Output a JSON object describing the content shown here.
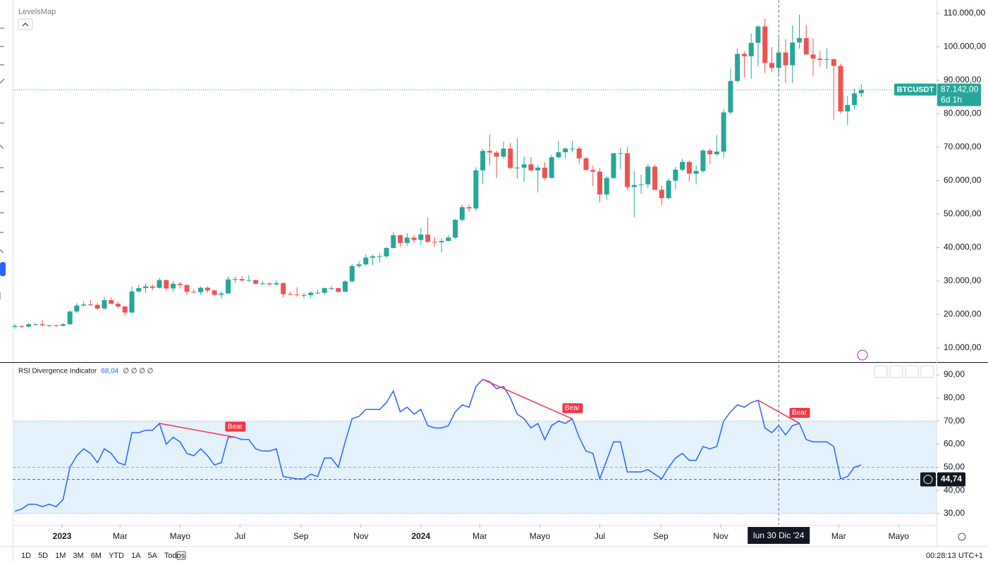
{
  "chart_data": [
    {
      "type": "candlestick",
      "indicator": "LevelsMap",
      "symbol": "BTCUSDT",
      "countdown": "6d 1h",
      "last_price": {
        "value": 87142,
        "label": "87.142,00"
      },
      "up_color": "#26a69a",
      "down_color": "#ef5350",
      "ylim": [
        5790,
        114000
      ],
      "yticks": [
        {
          "value": 10000,
          "label": "10.000,00"
        },
        {
          "value": 20000,
          "label": "20.000,00"
        },
        {
          "value": 30000,
          "label": "30.000,00"
        },
        {
          "value": 40000,
          "label": "40.000,00"
        },
        {
          "value": 50000,
          "label": "50.000,00"
        },
        {
          "value": 60000,
          "label": "60.000,00"
        },
        {
          "value": 70000,
          "label": "70.000,00"
        },
        {
          "value": 80000,
          "label": "80.000,00"
        },
        {
          "value": 90000,
          "label": "90.000,00"
        },
        {
          "value": 100000,
          "label": "100.000,00"
        },
        {
          "value": 110000,
          "label": "110.000,00"
        }
      ],
      "xticks": [
        {
          "value": "2023-01-01",
          "label": "2023"
        },
        {
          "value": "2023-03-01",
          "label": "Mar"
        },
        {
          "value": "2023-05-01",
          "label": "Mayo"
        },
        {
          "value": "2023-07-01",
          "label": "Jul"
        },
        {
          "value": "2023-09-01",
          "label": "Sep"
        },
        {
          "value": "2023-11-01",
          "label": "Nov"
        },
        {
          "value": "2024-01-01",
          "label": "2024"
        },
        {
          "value": "2024-03-01",
          "label": "Mar"
        },
        {
          "value": "2024-05-01",
          "label": "Mayo"
        },
        {
          "value": "2024-07-01",
          "label": "Jul"
        },
        {
          "value": "2024-09-01",
          "label": "Sep"
        },
        {
          "value": "2024-11-01",
          "label": "Nov"
        },
        {
          "value": "2025-03-01",
          "label": "Mar"
        },
        {
          "value": "2025-05-01",
          "label": "Mayo"
        }
      ],
      "x": [
        "2022-11-14",
        "2022-11-21",
        "2022-11-28",
        "2022-12-05",
        "2022-12-12",
        "2022-12-19",
        "2022-12-26",
        "2023-01-02",
        "2023-01-09",
        "2023-01-16",
        "2023-01-23",
        "2023-01-30",
        "2023-02-06",
        "2023-02-13",
        "2023-02-20",
        "2023-02-27",
        "2023-03-06",
        "2023-03-13",
        "2023-03-20",
        "2023-03-27",
        "2023-04-03",
        "2023-04-10",
        "2023-04-17",
        "2023-04-24",
        "2023-05-01",
        "2023-05-08",
        "2023-05-15",
        "2023-05-22",
        "2023-05-29",
        "2023-06-05",
        "2023-06-12",
        "2023-06-19",
        "2023-06-26",
        "2023-07-03",
        "2023-07-10",
        "2023-07-17",
        "2023-07-24",
        "2023-07-31",
        "2023-08-07",
        "2023-08-14",
        "2023-08-21",
        "2023-08-28",
        "2023-09-04",
        "2023-09-11",
        "2023-09-18",
        "2023-09-25",
        "2023-10-02",
        "2023-10-09",
        "2023-10-16",
        "2023-10-23",
        "2023-10-30",
        "2023-11-06",
        "2023-11-13",
        "2023-11-20",
        "2023-11-27",
        "2023-12-04",
        "2023-12-11",
        "2023-12-18",
        "2023-12-25",
        "2024-01-01",
        "2024-01-08",
        "2024-01-15",
        "2024-01-22",
        "2024-01-29",
        "2024-02-05",
        "2024-02-12",
        "2024-02-19",
        "2024-02-26",
        "2024-03-04",
        "2024-03-11",
        "2024-03-18",
        "2024-03-25",
        "2024-04-01",
        "2024-04-08",
        "2024-04-15",
        "2024-04-22",
        "2024-04-29",
        "2024-05-06",
        "2024-05-13",
        "2024-05-20",
        "2024-05-27",
        "2024-06-03",
        "2024-06-10",
        "2024-06-17",
        "2024-06-24",
        "2024-07-01",
        "2024-07-08",
        "2024-07-15",
        "2024-07-22",
        "2024-07-29",
        "2024-08-05",
        "2024-08-12",
        "2024-08-19",
        "2024-08-26",
        "2024-09-02",
        "2024-09-09",
        "2024-09-16",
        "2024-09-23",
        "2024-09-30",
        "2024-10-07",
        "2024-10-14",
        "2024-10-21",
        "2024-10-28",
        "2024-11-04",
        "2024-11-11",
        "2024-11-18",
        "2024-11-25",
        "2024-12-02",
        "2024-12-09",
        "2024-12-16",
        "2024-12-23",
        "2024-12-30",
        "2025-01-06",
        "2025-01-13",
        "2025-01-20",
        "2025-01-27",
        "2025-02-03",
        "2025-02-10",
        "2025-02-17",
        "2025-02-24",
        "2025-03-03",
        "2025-03-10",
        "2025-03-17",
        "2025-03-24"
      ],
      "ohlc": [
        [
          16300,
          17200,
          15800,
          16600
        ],
        [
          16600,
          16800,
          15900,
          16400
        ],
        [
          16400,
          17400,
          16200,
          17100
        ],
        [
          17100,
          17400,
          16700,
          17100
        ],
        [
          17100,
          18400,
          16500,
          16800
        ],
        [
          16800,
          17000,
          16300,
          16800
        ],
        [
          16800,
          16900,
          16300,
          16600
        ],
        [
          16600,
          17400,
          16500,
          17100
        ],
        [
          17100,
          21300,
          17000,
          20900
        ],
        [
          20900,
          23400,
          20400,
          22700
        ],
        [
          22700,
          23900,
          22300,
          23000
        ],
        [
          23000,
          24300,
          22600,
          22900
        ],
        [
          22900,
          23500,
          21400,
          21800
        ],
        [
          21800,
          25300,
          21500,
          24300
        ],
        [
          24300,
          25100,
          23200,
          23200
        ],
        [
          23200,
          23900,
          21900,
          22400
        ],
        [
          22400,
          22600,
          19600,
          20600
        ],
        [
          20600,
          28400,
          20200,
          26900
        ],
        [
          26900,
          28900,
          26600,
          27900
        ],
        [
          27900,
          29200,
          26500,
          28400
        ],
        [
          28400,
          29000,
          27200,
          28000
        ],
        [
          28000,
          31000,
          27800,
          30300
        ],
        [
          30300,
          30500,
          27100,
          27800
        ],
        [
          27800,
          30000,
          26900,
          29200
        ],
        [
          29200,
          29800,
          27700,
          28800
        ],
        [
          28800,
          29100,
          25800,
          26800
        ],
        [
          26800,
          27700,
          26400,
          26700
        ],
        [
          26700,
          28400,
          25900,
          28000
        ],
        [
          28000,
          28400,
          26500,
          27200
        ],
        [
          27200,
          27400,
          25400,
          25900
        ],
        [
          25900,
          27000,
          24800,
          26300
        ],
        [
          26300,
          31400,
          26200,
          30500
        ],
        [
          30500,
          31300,
          29500,
          30600
        ],
        [
          30600,
          31500,
          29700,
          30200
        ],
        [
          30200,
          31800,
          29900,
          30300
        ],
        [
          30300,
          30400,
          29000,
          29200
        ],
        [
          29200,
          30000,
          28900,
          29300
        ],
        [
          29300,
          29700,
          28600,
          29000
        ],
        [
          29000,
          30200,
          28700,
          29400
        ],
        [
          29400,
          29700,
          25200,
          26100
        ],
        [
          26100,
          26800,
          25800,
          26000
        ],
        [
          26000,
          28100,
          25300,
          25800
        ],
        [
          25800,
          26400,
          24900,
          25800
        ],
        [
          25800,
          27000,
          24900,
          26500
        ],
        [
          26500,
          27500,
          26100,
          26500
        ],
        [
          26500,
          28100,
          26000,
          27900
        ],
        [
          27900,
          28600,
          27200,
          27900
        ],
        [
          27900,
          28000,
          26500,
          26800
        ],
        [
          26800,
          30300,
          26700,
          29900
        ],
        [
          29900,
          35200,
          29700,
          34500
        ],
        [
          34500,
          35900,
          33900,
          35000
        ],
        [
          35000,
          38000,
          34500,
          37000
        ],
        [
          37000,
          37900,
          34800,
          37400
        ],
        [
          37400,
          38400,
          35600,
          37400
        ],
        [
          37400,
          40200,
          36900,
          39900
        ],
        [
          39900,
          44700,
          39700,
          43700
        ],
        [
          43700,
          44000,
          40200,
          41400
        ],
        [
          41400,
          44400,
          40500,
          43000
        ],
        [
          43000,
          43800,
          41400,
          42300
        ],
        [
          42300,
          45900,
          40800,
          43900
        ],
        [
          43900,
          49000,
          41500,
          41700
        ],
        [
          41700,
          43200,
          40300,
          41600
        ],
        [
          41600,
          42800,
          38600,
          42000
        ],
        [
          42000,
          43800,
          41900,
          43000
        ],
        [
          43000,
          48600,
          42600,
          48300
        ],
        [
          48300,
          52800,
          47700,
          52100
        ],
        [
          52100,
          52900,
          50600,
          51700
        ],
        [
          51700,
          64000,
          50900,
          63100
        ],
        [
          63100,
          69500,
          59000,
          68900
        ],
        [
          68900,
          73800,
          64500,
          68400
        ],
        [
          68400,
          68900,
          60800,
          67200
        ],
        [
          67200,
          71700,
          66600,
          69600
        ],
        [
          69600,
          71300,
          63500,
          63800
        ],
        [
          63800,
          72800,
          60700,
          63900
        ],
        [
          63900,
          67200,
          59700,
          64900
        ],
        [
          64900,
          67100,
          62800,
          63100
        ],
        [
          63100,
          64700,
          56500,
          63900
        ],
        [
          63900,
          65500,
          60200,
          60800
        ],
        [
          60800,
          67700,
          60800,
          67000
        ],
        [
          67000,
          71900,
          66600,
          68500
        ],
        [
          68500,
          70000,
          66700,
          69600
        ],
        [
          69600,
          72000,
          68500,
          69600
        ],
        [
          69600,
          70200,
          65100,
          66700
        ],
        [
          66700,
          66900,
          63000,
          63200
        ],
        [
          63200,
          64500,
          58400,
          62700
        ],
        [
          62700,
          63800,
          53500,
          55900
        ],
        [
          55900,
          61400,
          54300,
          60800
        ],
        [
          60800,
          68300,
          60600,
          68200
        ],
        [
          68200,
          69900,
          63500,
          68200
        ],
        [
          68200,
          70000,
          57100,
          58100
        ],
        [
          58100,
          62800,
          49100,
          58700
        ],
        [
          58700,
          61800,
          56100,
          58900
        ],
        [
          58900,
          65000,
          57800,
          64200
        ],
        [
          64200,
          64900,
          57200,
          57300
        ],
        [
          57300,
          58500,
          52600,
          54800
        ],
        [
          54800,
          60700,
          54500,
          60000
        ],
        [
          60000,
          64100,
          57500,
          63300
        ],
        [
          63300,
          66500,
          62700,
          65600
        ],
        [
          65600,
          66000,
          59800,
          62100
        ],
        [
          62100,
          64500,
          58900,
          62900
        ],
        [
          62900,
          69500,
          62400,
          69000
        ],
        [
          69000,
          69500,
          65100,
          67900
        ],
        [
          67900,
          73600,
          67500,
          68700
        ],
        [
          68700,
          81500,
          66800,
          80400
        ],
        [
          80400,
          93500,
          79800,
          89800
        ],
        [
          89800,
          99600,
          89400,
          97900
        ],
        [
          97900,
          98700,
          90800,
          97200
        ],
        [
          97200,
          104000,
          90500,
          101200
        ],
        [
          101200,
          106500,
          94200,
          106100
        ],
        [
          106100,
          108300,
          92200,
          95200
        ],
        [
          95200,
          99900,
          92500,
          93700
        ],
        [
          93700,
          102700,
          91200,
          98300
        ],
        [
          98300,
          102300,
          89300,
          94500
        ],
        [
          94500,
          106400,
          89200,
          101300
        ],
        [
          101300,
          109600,
          99500,
          102600
        ],
        [
          102600,
          106500,
          97800,
          97700
        ],
        [
          97700,
          102500,
          91200,
          96500
        ],
        [
          96500,
          98800,
          94100,
          96100
        ],
        [
          96100,
          99500,
          93400,
          96300
        ],
        [
          96300,
          96500,
          78200,
          94300
        ],
        [
          94300,
          95000,
          80000,
          80700
        ],
        [
          80700,
          85300,
          76600,
          82600
        ],
        [
          82600,
          87500,
          81300,
          86100
        ],
        [
          86100,
          88800,
          85000,
          87142
        ]
      ]
    },
    {
      "type": "line",
      "name": "RSI Divergence Indicator",
      "value_label": "68,04",
      "flags": "∅ ∅ ∅ ∅",
      "color": "#2962ff",
      "band": [
        30,
        70
      ],
      "band_color": "#e3f2fd",
      "midline": 50,
      "ylim": [
        25.1,
        95.2
      ],
      "yticks": [
        {
          "value": 30,
          "label": "30,00"
        },
        {
          "value": 40,
          "label": "40,00"
        },
        {
          "value": 50,
          "label": "50,00"
        },
        {
          "value": 60,
          "label": "60,00"
        },
        {
          "value": 70,
          "label": "70,00"
        },
        {
          "value": 80,
          "label": "80,00"
        },
        {
          "value": 90,
          "label": "90,00"
        }
      ],
      "values": [
        31,
        32,
        34,
        34,
        33,
        34,
        33,
        36,
        50,
        55,
        58,
        56,
        52,
        58,
        56,
        52,
        51,
        65,
        65,
        66,
        66,
        69,
        60,
        63,
        61,
        56,
        55,
        58,
        55,
        51,
        52,
        63,
        63,
        62,
        62,
        58,
        57,
        57,
        58,
        46,
        45.5,
        45,
        45,
        47,
        46,
        54,
        54,
        50,
        61,
        71,
        72,
        75,
        75,
        75,
        78,
        83,
        74,
        76,
        73,
        75,
        68,
        67,
        67,
        68,
        74,
        77,
        76,
        85,
        88,
        87,
        84,
        85,
        80,
        73,
        71,
        67,
        69,
        62,
        68,
        70,
        69,
        71,
        63,
        57,
        56,
        45,
        53,
        61,
        61,
        48,
        48,
        48,
        49,
        47,
        45,
        50,
        54,
        56,
        53,
        53,
        59,
        58,
        59,
        70,
        74,
        77,
        76,
        78,
        79,
        67,
        65,
        68,
        64,
        68,
        69,
        62,
        61,
        61,
        61,
        59,
        45,
        46,
        50,
        51
      ],
      "annotations": [
        {
          "label": "Bear",
          "color": "#f23645",
          "from": [
            "2023-04-10",
            69
          ],
          "to": [
            "2023-06-26",
            63
          ]
        },
        {
          "label": "Bear",
          "color": "#f23645",
          "from": [
            "2024-03-04",
            88
          ],
          "to": [
            "2024-06-03",
            71
          ]
        },
        {
          "label": "Bear",
          "color": "#f23645",
          "from": [
            "2024-12-09",
            79
          ],
          "to": [
            "2025-01-20",
            69
          ]
        }
      ],
      "crosshair": {
        "x": "2024-12-30",
        "x_label": "lun 30 Dic '24",
        "y": 44.74,
        "y_label": "44,74"
      }
    }
  ],
  "toolbar": {
    "ranges": [
      "1D",
      "5D",
      "1M",
      "3M",
      "6M",
      "YTD",
      "1A",
      "5A",
      "Todos"
    ],
    "clock": "00:28:13 UTC+1"
  }
}
